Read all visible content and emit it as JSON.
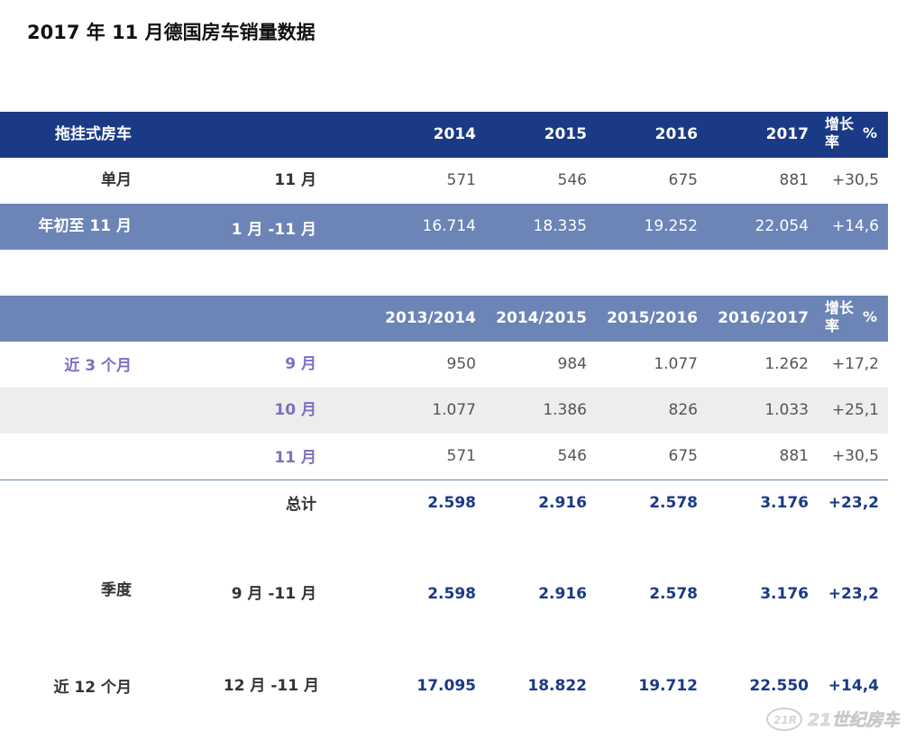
{
  "title": "2017 年 11 月德国房车销量数据",
  "table1": {
    "header": {
      "label": "拖挂式房车",
      "years": [
        "2014",
        "2015",
        "2016",
        "2017"
      ],
      "growth_line1": "增长",
      "growth_line2": "率",
      "growth_unit": "%"
    },
    "rows": [
      {
        "label1": "单月",
        "label2": "11 月",
        "values": [
          "571",
          "546",
          "675",
          "881"
        ],
        "growth": "+30,5"
      },
      {
        "label1": "年初至 11 月",
        "label2": "1 月 -11 月",
        "values": [
          "16.714",
          "18.335",
          "19.252",
          "22.054"
        ],
        "growth": "+14,6"
      }
    ]
  },
  "table2": {
    "header": {
      "periods": [
        "2013/2014",
        "2014/2015",
        "2015/2016",
        "2016/2017"
      ],
      "growth_line1": "增长",
      "growth_line2": "率",
      "growth_unit": "%"
    },
    "rows": [
      {
        "label1": "近 3 个月",
        "label2": "9 月",
        "values": [
          "950",
          "984",
          "1.077",
          "1.262"
        ],
        "growth": "+17,2"
      },
      {
        "label1": "",
        "label2": "10 月",
        "values": [
          "1.077",
          "1.386",
          "826",
          "1.033"
        ],
        "growth": "+25,1"
      },
      {
        "label1": "",
        "label2": "11 月",
        "values": [
          "571",
          "546",
          "675",
          "881"
        ],
        "growth": "+30,5"
      },
      {
        "label1": "",
        "label2": "总计",
        "values": [
          "2.598",
          "2.916",
          "2.578",
          "3.176"
        ],
        "growth": "+23,2"
      },
      {
        "label1": "季度",
        "label2": "9 月 -11 月",
        "values": [
          "2.598",
          "2.916",
          "2.578",
          "3.176"
        ],
        "growth": "+23,2"
      },
      {
        "label1": "近 12 个月",
        "label2": "12 月 -11 月",
        "values": [
          "17.095",
          "18.822",
          "19.712",
          "22.550"
        ],
        "growth": "+14,4"
      }
    ]
  },
  "watermark_text": "21世纪房车",
  "colors": {
    "header_dark": "#1b3a86",
    "header_mid": "#6c84b6",
    "band_grey": "#ededed",
    "accent_purple": "#7b70c0"
  }
}
